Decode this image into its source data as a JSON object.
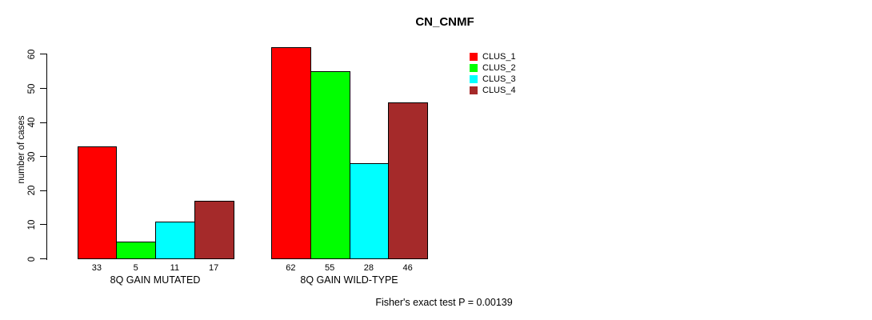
{
  "chart_data": {
    "type": "bar",
    "title": "CN_CNMF",
    "ylabel": "number of cases",
    "xlabel": "",
    "ylim": [
      0,
      62
    ],
    "yticks": [
      0,
      10,
      20,
      30,
      40,
      50,
      60
    ],
    "grid": false,
    "legend_position": "top-right",
    "categories": [
      "8Q GAIN MUTATED",
      "8Q GAIN WILD-TYPE"
    ],
    "series": [
      {
        "name": "CLUS_1",
        "color": "#FF0000",
        "values": [
          33,
          62
        ]
      },
      {
        "name": "CLUS_2",
        "color": "#00FF00",
        "values": [
          5,
          55
        ]
      },
      {
        "name": "CLUS_3",
        "color": "#00FFFF",
        "values": [
          11,
          28
        ]
      },
      {
        "name": "CLUS_4",
        "color": "#A52A2A",
        "values": [
          17,
          46
        ]
      }
    ],
    "bar_value_labels_shown": true,
    "annotation": "Fisher's exact test P = 0.00139"
  }
}
